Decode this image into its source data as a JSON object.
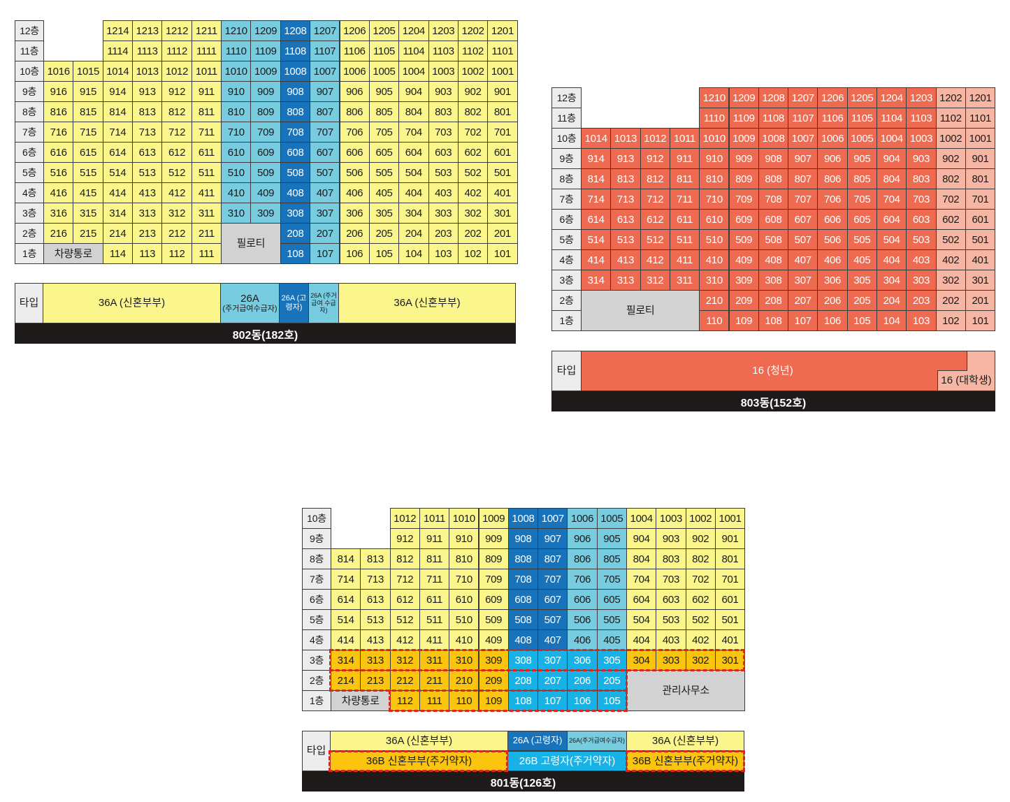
{
  "colors": {
    "yellow": "#faf68c",
    "cyan": "#78cce0",
    "blue": "#1873ba",
    "orange_yellow": "#fbc40f",
    "bright_cyan": "#19b2e6",
    "coral": "#ee6b51",
    "peach": "#f7b6a3",
    "gray": "#d2d2d2",
    "floor_label": "#ececec",
    "footer": "#1e1a1a",
    "highlight_border": "#e2231a"
  },
  "b802": {
    "floors": [
      "12층",
      "11층",
      "10층",
      "9층",
      "8층",
      "7층",
      "6층",
      "5층",
      "4층",
      "3층",
      "2층",
      "1층"
    ],
    "special_cells": [
      "차량통로",
      "필로티"
    ],
    "types": [
      "타입",
      "36A (신혼부부)",
      "26A",
      "(주거급여수급자)",
      "26A (고령자)",
      "26A (주거급여 수급자)",
      "36A (신혼부부)"
    ],
    "footer": "802동(182호)"
  },
  "b803": {
    "floors": [
      "12층",
      "11층",
      "10층",
      "9층",
      "8층",
      "7층",
      "6층",
      "5층",
      "4층",
      "3층",
      "2층",
      "1층"
    ],
    "special_cells": [
      "필로티"
    ],
    "types": [
      "타입",
      "16 (청년)",
      "16 (대학생)"
    ],
    "footer": "803동(152호)"
  },
  "b801": {
    "floors": [
      "10층",
      "9층",
      "8층",
      "7층",
      "6층",
      "5층",
      "4층",
      "3층",
      "2층",
      "1층"
    ],
    "special_cells": [
      "차량통로",
      "관리사무소"
    ],
    "types": [
      "타입",
      "36A (신혼부부)",
      "26A (고령자)",
      "26A(주거급여수급자)",
      "36A (신혼부부)",
      "36B 신혼부부(주거약자)",
      "26B 고령자(주거약자)",
      "36B 신혼부부(주거약자)"
    ],
    "footer": "801동(126호)"
  }
}
